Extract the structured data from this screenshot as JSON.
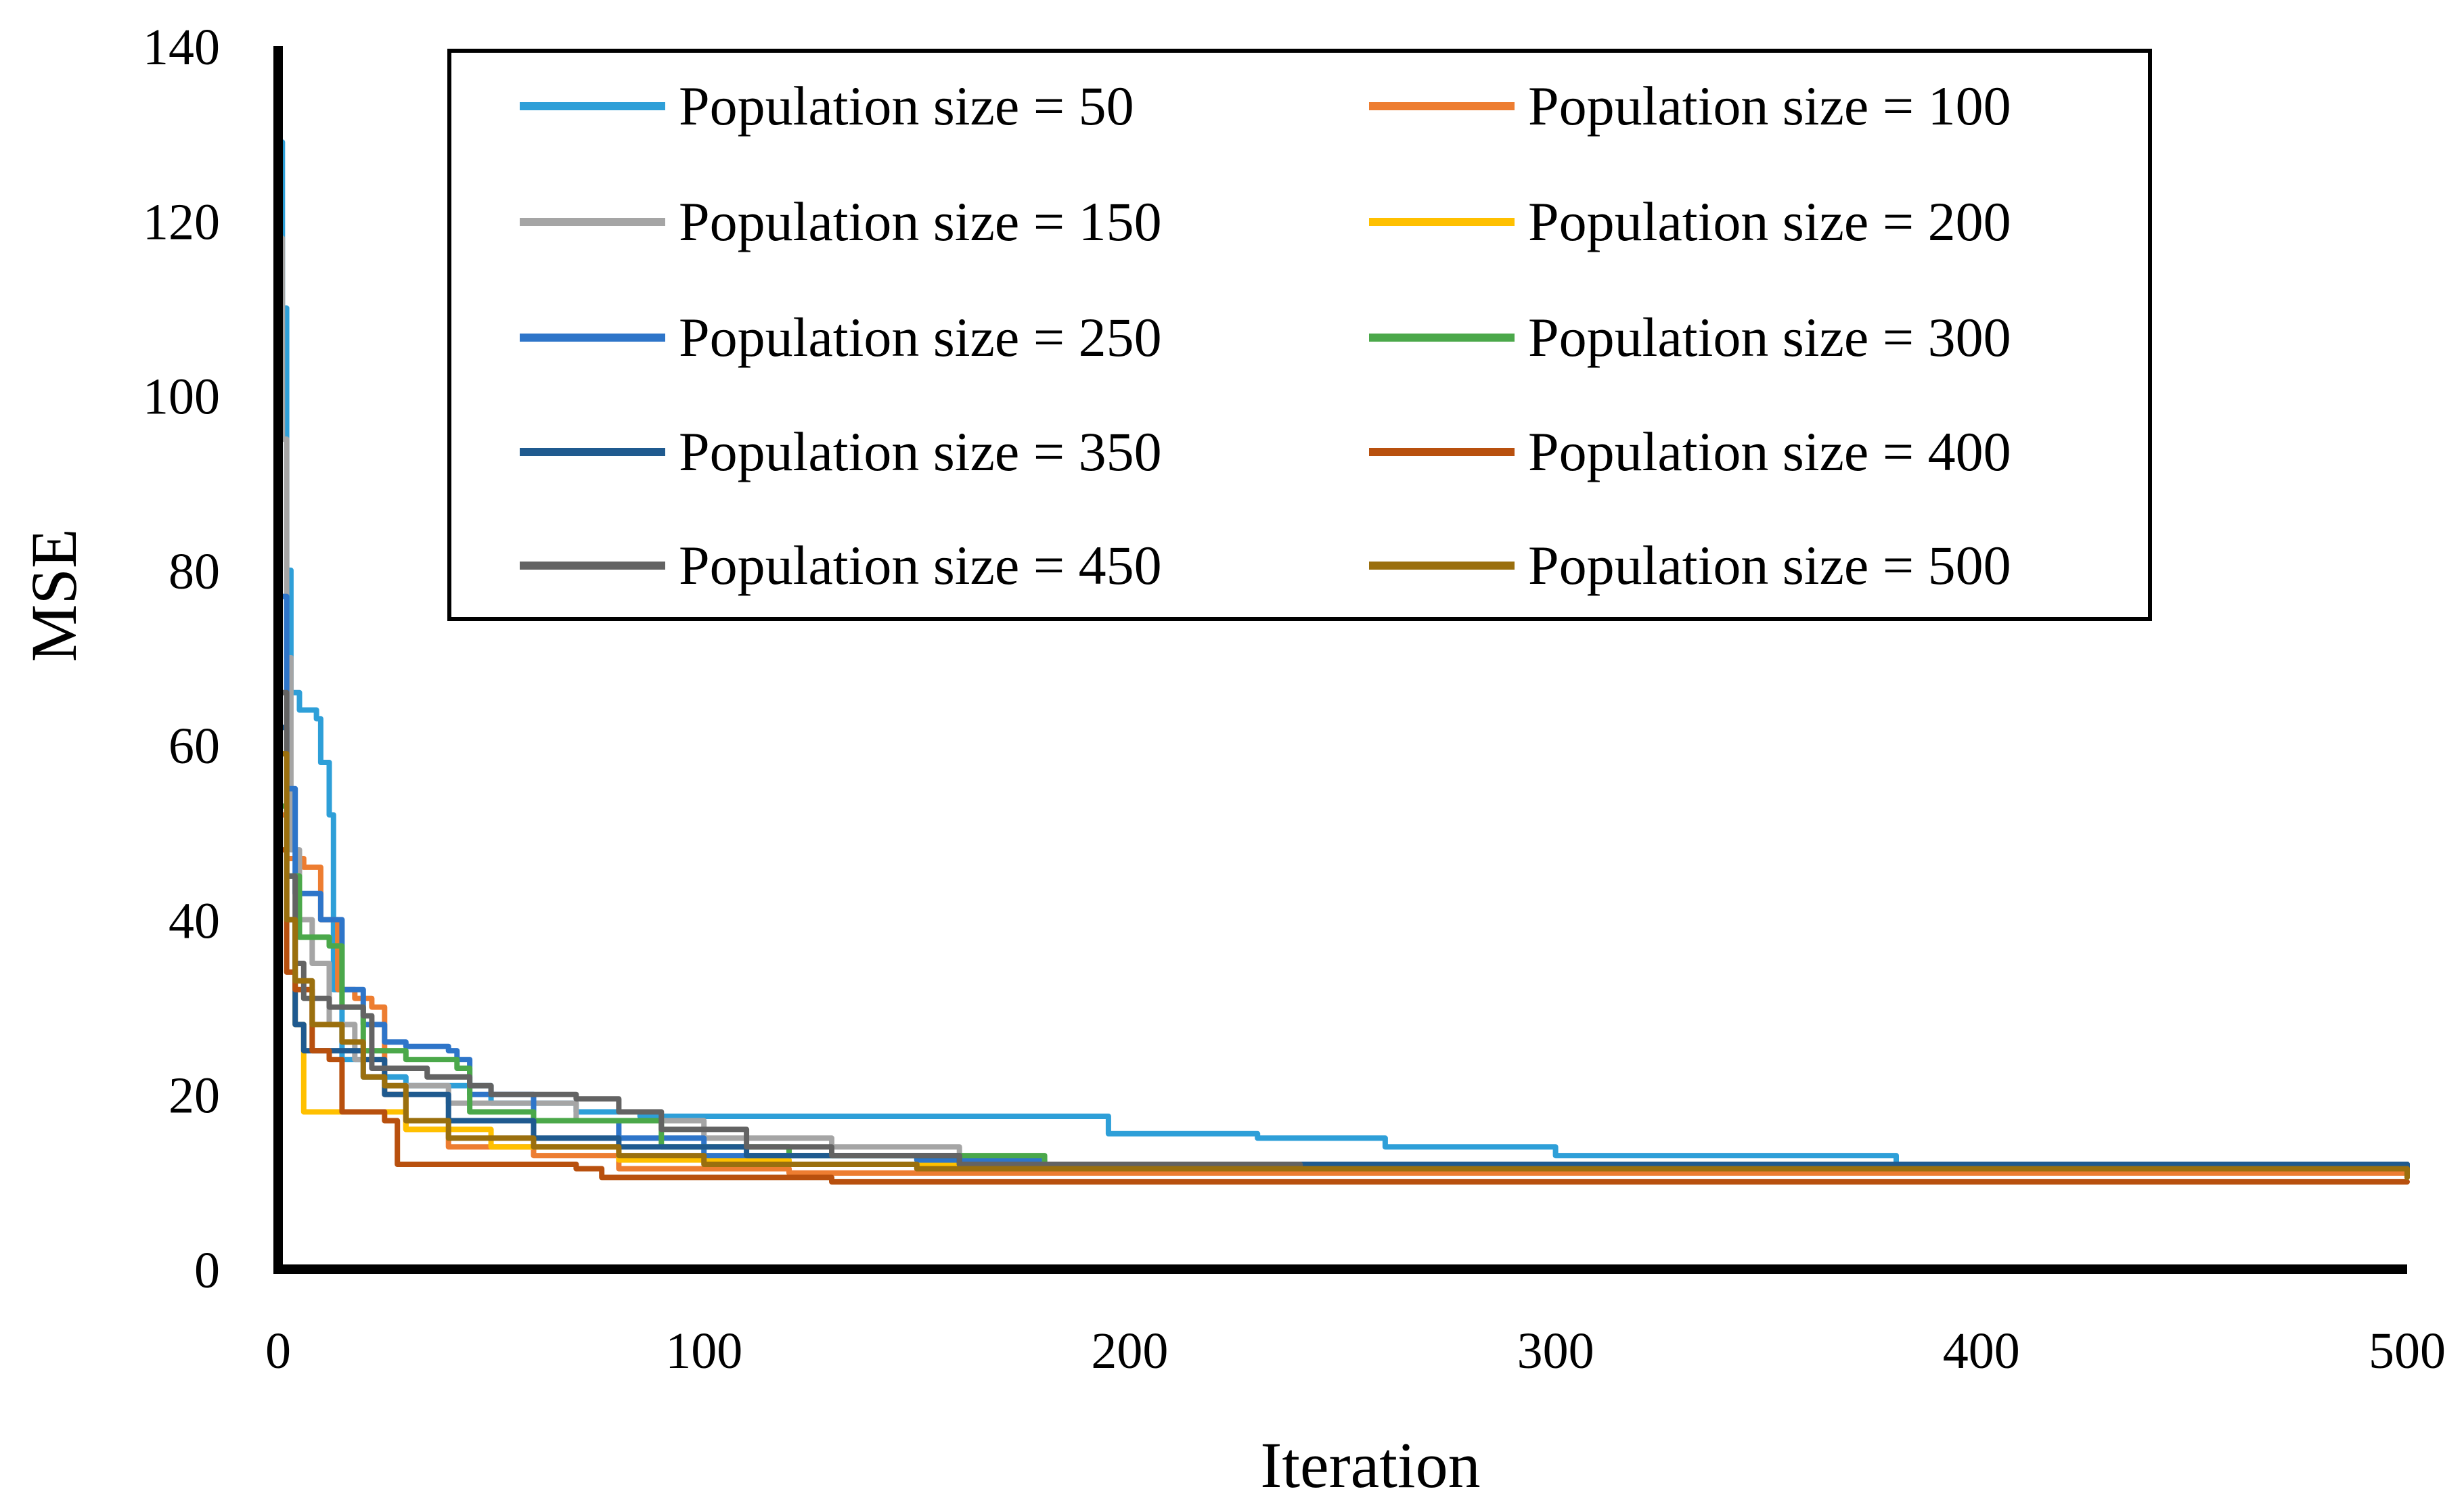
{
  "chart_data": {
    "type": "line",
    "title": "",
    "xlabel": "Iteration",
    "ylabel": "MSE",
    "xlim": [
      0,
      500
    ],
    "ylim": [
      0,
      140
    ],
    "x_ticks": [
      0,
      100,
      200,
      300,
      400,
      500
    ],
    "y_ticks": [
      0,
      20,
      40,
      60,
      80,
      100,
      120,
      140
    ],
    "grid": false,
    "legend_position": "top",
    "series": [
      {
        "name": "Population size = 50",
        "color": "#2E9FD8",
        "points": [
          [
            0,
            129
          ],
          [
            1,
            110
          ],
          [
            2,
            80
          ],
          [
            3,
            66
          ],
          [
            5,
            64
          ],
          [
            9,
            63
          ],
          [
            10,
            58
          ],
          [
            12,
            52
          ],
          [
            13,
            32
          ],
          [
            15,
            24
          ],
          [
            20,
            22
          ],
          [
            30,
            21
          ],
          [
            50,
            19
          ],
          [
            70,
            18
          ],
          [
            85,
            17.5
          ],
          [
            190,
            17.5
          ],
          [
            195,
            15.5
          ],
          [
            230,
            15
          ],
          [
            260,
            14
          ],
          [
            300,
            13
          ],
          [
            380,
            12
          ],
          [
            500,
            11.5
          ]
        ]
      },
      {
        "name": "Population size = 100",
        "color": "#ED7D31",
        "points": [
          [
            0,
            52
          ],
          [
            2,
            47
          ],
          [
            6,
            46
          ],
          [
            10,
            40
          ],
          [
            14,
            32
          ],
          [
            18,
            31
          ],
          [
            22,
            30
          ],
          [
            25,
            20
          ],
          [
            30,
            16
          ],
          [
            40,
            14
          ],
          [
            60,
            13
          ],
          [
            80,
            11.5
          ],
          [
            120,
            11
          ],
          [
            500,
            10.5
          ]
        ]
      },
      {
        "name": "Population size = 150",
        "color": "#A5A5A5",
        "points": [
          [
            0,
            118
          ],
          [
            1,
            95
          ],
          [
            2,
            70
          ],
          [
            3,
            48
          ],
          [
            5,
            40
          ],
          [
            8,
            35
          ],
          [
            12,
            28
          ],
          [
            18,
            24
          ],
          [
            25,
            21
          ],
          [
            40,
            19
          ],
          [
            70,
            17
          ],
          [
            100,
            15
          ],
          [
            130,
            14
          ],
          [
            160,
            12
          ],
          [
            500,
            11
          ]
        ]
      },
      {
        "name": "Population size = 200",
        "color": "#FFC000",
        "points": [
          [
            0,
            59
          ],
          [
            2,
            40
          ],
          [
            4,
            28
          ],
          [
            6,
            18
          ],
          [
            20,
            18
          ],
          [
            30,
            16
          ],
          [
            50,
            14
          ],
          [
            80,
            12.5
          ],
          [
            120,
            12
          ],
          [
            500,
            11
          ]
        ]
      },
      {
        "name": "Population size = 250",
        "color": "#2E75C9",
        "points": [
          [
            0,
            77
          ],
          [
            2,
            55
          ],
          [
            4,
            43
          ],
          [
            10,
            40
          ],
          [
            15,
            32
          ],
          [
            20,
            28
          ],
          [
            25,
            26
          ],
          [
            30,
            25.5
          ],
          [
            40,
            25
          ],
          [
            42,
            24
          ],
          [
            45,
            20
          ],
          [
            60,
            17
          ],
          [
            80,
            15
          ],
          [
            100,
            13
          ],
          [
            150,
            12.5
          ],
          [
            180,
            12
          ],
          [
            500,
            11
          ]
        ]
      },
      {
        "name": "Population size = 300",
        "color": "#4BA84A",
        "points": [
          [
            0,
            53
          ],
          [
            2,
            45
          ],
          [
            5,
            38
          ],
          [
            12,
            37
          ],
          [
            15,
            30
          ],
          [
            20,
            25
          ],
          [
            30,
            24
          ],
          [
            42,
            23
          ],
          [
            45,
            18
          ],
          [
            60,
            17
          ],
          [
            90,
            14
          ],
          [
            120,
            13
          ],
          [
            180,
            12
          ],
          [
            250,
            11.5
          ],
          [
            500,
            11
          ]
        ]
      },
      {
        "name": "Population size = 350",
        "color": "#1F5A8F",
        "points": [
          [
            0,
            62
          ],
          [
            2,
            40
          ],
          [
            4,
            28
          ],
          [
            6,
            25
          ],
          [
            20,
            24
          ],
          [
            25,
            20
          ],
          [
            40,
            17
          ],
          [
            60,
            15
          ],
          [
            80,
            14
          ],
          [
            110,
            13
          ],
          [
            160,
            12
          ],
          [
            500,
            11
          ]
        ]
      },
      {
        "name": "Population size = 400",
        "color": "#B8500E",
        "points": [
          [
            0,
            48
          ],
          [
            2,
            34
          ],
          [
            4,
            32
          ],
          [
            8,
            25
          ],
          [
            12,
            24
          ],
          [
            15,
            18
          ],
          [
            25,
            17
          ],
          [
            28,
            12
          ],
          [
            50,
            12
          ],
          [
            70,
            11.5
          ],
          [
            76,
            10.5
          ],
          [
            130,
            10
          ],
          [
            500,
            10
          ]
        ]
      },
      {
        "name": "Population size = 450",
        "color": "#636363",
        "points": [
          [
            0,
            66
          ],
          [
            2,
            45
          ],
          [
            4,
            35
          ],
          [
            6,
            31
          ],
          [
            12,
            30
          ],
          [
            20,
            29
          ],
          [
            22,
            23
          ],
          [
            35,
            22
          ],
          [
            45,
            21
          ],
          [
            50,
            20
          ],
          [
            70,
            19.5
          ],
          [
            80,
            18
          ],
          [
            90,
            16
          ],
          [
            110,
            14
          ],
          [
            130,
            13
          ],
          [
            160,
            12
          ],
          [
            240,
            11.5
          ],
          [
            500,
            11
          ]
        ]
      },
      {
        "name": "Population size = 500",
        "color": "#9A6F0E",
        "points": [
          [
            0,
            59
          ],
          [
            2,
            40
          ],
          [
            4,
            33
          ],
          [
            8,
            28
          ],
          [
            15,
            26
          ],
          [
            20,
            22
          ],
          [
            25,
            21
          ],
          [
            30,
            17
          ],
          [
            40,
            15
          ],
          [
            60,
            14
          ],
          [
            80,
            13
          ],
          [
            100,
            12
          ],
          [
            150,
            11.5
          ],
          [
            500,
            10.5
          ]
        ]
      }
    ]
  }
}
